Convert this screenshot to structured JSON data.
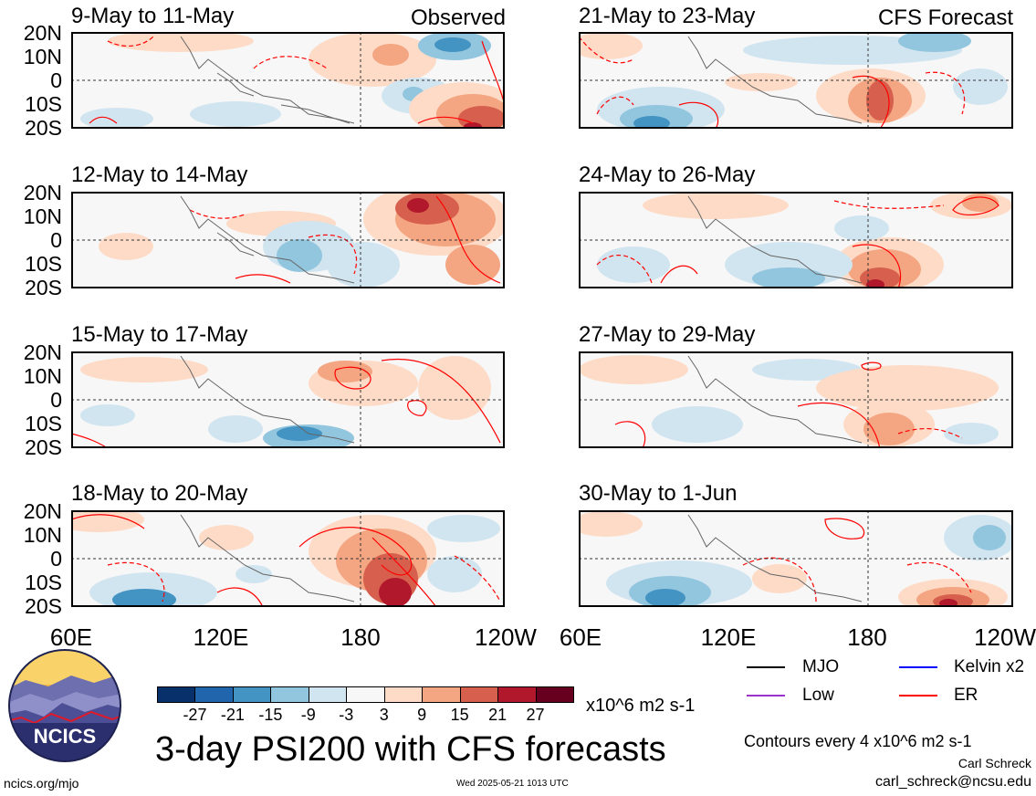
{
  "figure": {
    "main_title": "3-day PSI200 with CFS forecasts",
    "observed_label": "Observed",
    "forecast_label": "CFS Forecast",
    "credit_name": "Carl Schreck",
    "credit_email": "carl_schreck@ncsu.edu",
    "footer_url": "ncics.org/mjo",
    "timestamp": "Wed 2025-05-21 1013 UTC",
    "contour_note": "Contours every 4 x10^6 m2 s-1",
    "logo_text": "NCICS"
  },
  "axes": {
    "lat_labels": [
      "20N",
      "10N",
      "0",
      "10S",
      "20S"
    ],
    "lon_labels": [
      "60E",
      "120E",
      "180",
      "120W"
    ]
  },
  "panels": {
    "left": [
      {
        "title": "9-May to 11-May"
      },
      {
        "title": "12-May to 14-May"
      },
      {
        "title": "15-May to 17-May"
      },
      {
        "title": "18-May to 20-May"
      }
    ],
    "right": [
      {
        "title": "21-May to 23-May"
      },
      {
        "title": "24-May to 26-May"
      },
      {
        "title": "27-May to 29-May"
      },
      {
        "title": "30-May to 1-Jun"
      }
    ]
  },
  "colorbar": {
    "ticks": [
      "-27",
      "-21",
      "-15",
      "-9",
      "-3",
      "3",
      "9",
      "15",
      "21",
      "27"
    ],
    "units": "x10^6 m2 s-1",
    "colors": [
      "#08306b",
      "#2166ac",
      "#4393c3",
      "#92c5de",
      "#d1e5f0",
      "#f7f7f7",
      "#fddbc7",
      "#f4a582",
      "#d6604d",
      "#b2182b",
      "#67001f"
    ]
  },
  "legend": [
    {
      "label": "MJO",
      "color": "#000000"
    },
    {
      "label": "Kelvin x2",
      "color": "#0000ff"
    },
    {
      "label": "Low",
      "color": "#9933cc"
    },
    {
      "label": "ER",
      "color": "#ff0000"
    }
  ]
}
